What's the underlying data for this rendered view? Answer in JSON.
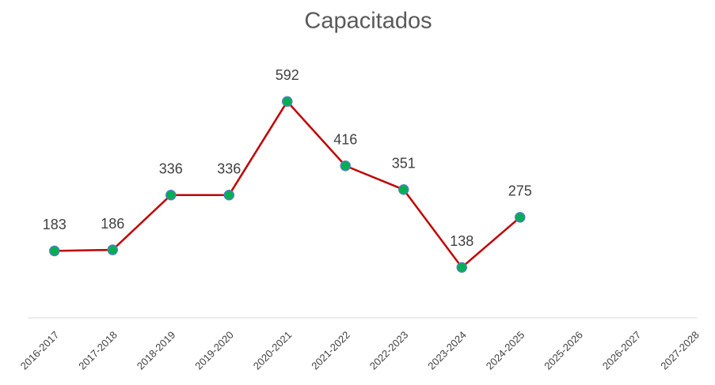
{
  "chart_data": {
    "type": "line",
    "title": "Capacitados",
    "categories": [
      "2016-2017",
      "2017-2018",
      "2018-2019",
      "2019-2020",
      "2020-2021",
      "2021-2022",
      "2022-2023",
      "2023-2024",
      "2024-2025",
      "2025-2026",
      "2026-2027",
      "2027-2028"
    ],
    "series": [
      {
        "name": "Capacitados",
        "color": "#c00000",
        "marker_color": "#00b050",
        "marker_edge": "#4f81bd",
        "values": [
          183,
          186,
          336,
          336,
          592,
          416,
          351,
          138,
          275,
          null,
          null,
          null
        ]
      }
    ],
    "ylim": [
      0,
      700
    ]
  }
}
